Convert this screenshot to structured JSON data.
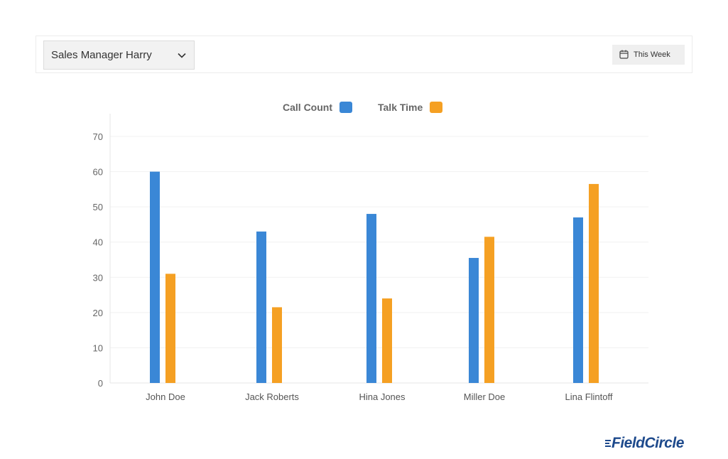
{
  "filters": {
    "manager_label": "Sales Manager Harry",
    "period_label": "This Week"
  },
  "brand": {
    "name": "FieldCircle",
    "color": "#1e4a8c"
  },
  "chart_data": {
    "type": "bar",
    "categories": [
      "John Doe",
      "Jack Roberts",
      "Hina Jones",
      "Miller Doe",
      "Lina Flintoff"
    ],
    "series": [
      {
        "name": "Call Count",
        "color": "#3a87d6",
        "values": [
          60,
          43,
          48,
          35.5,
          47
        ]
      },
      {
        "name": "Talk Time",
        "color": "#f5a023",
        "values": [
          31,
          21.5,
          24,
          41.5,
          56.5
        ]
      }
    ],
    "ylim": [
      0,
      70
    ],
    "yticks": [
      0,
      10,
      20,
      30,
      40,
      50,
      60,
      70
    ],
    "grid": true,
    "legend_position": "top-center"
  }
}
